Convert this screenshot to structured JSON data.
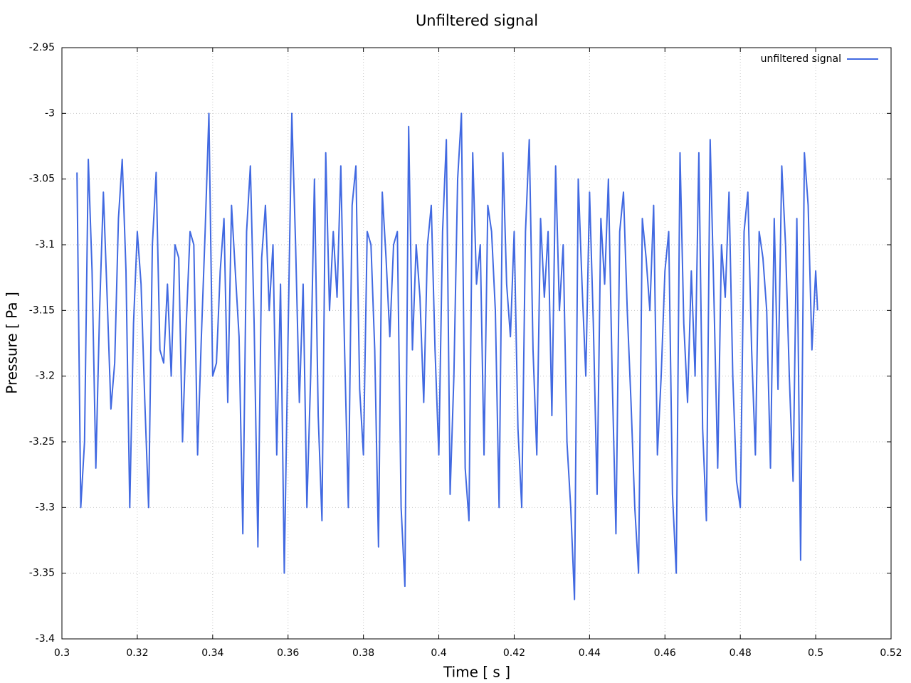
{
  "chart_data": {
    "type": "line",
    "title": "Unfiltered signal",
    "x_label": "Time [ s ]",
    "y_label": "Pressure [ Pa ]",
    "xlim": [
      0.3,
      0.52
    ],
    "xticks": [
      0.3,
      0.32,
      0.34,
      0.36,
      0.38,
      0.4,
      0.42,
      0.44,
      0.46,
      0.48,
      0.5,
      0.52
    ],
    "ylim": [
      -3.4,
      -2.95
    ],
    "yticks": [
      -3.4,
      -3.35,
      -3.3,
      -3.25,
      -3.2,
      -3.15,
      -3.1,
      -3.05,
      -3,
      -2.95
    ],
    "grid": true,
    "legend": "top-right",
    "x": [
      0.304,
      0.305,
      0.306,
      0.307,
      0.308,
      0.309,
      0.31,
      0.311,
      0.312,
      0.313,
      0.314,
      0.315,
      0.316,
      0.317,
      0.318,
      0.319,
      0.32,
      0.321,
      0.322,
      0.323,
      0.324,
      0.325,
      0.326,
      0.327,
      0.328,
      0.329,
      0.33,
      0.331,
      0.332,
      0.333,
      0.334,
      0.335,
      0.336,
      0.337,
      0.338,
      0.339,
      0.34,
      0.341,
      0.342,
      0.343,
      0.344,
      0.345,
      0.346,
      0.347,
      0.348,
      0.349,
      0.35,
      0.351,
      0.352,
      0.353,
      0.354,
      0.355,
      0.356,
      0.357,
      0.358,
      0.359,
      0.36,
      0.361,
      0.362,
      0.363,
      0.364,
      0.365,
      0.366,
      0.367,
      0.368,
      0.369,
      0.37,
      0.371,
      0.372,
      0.373,
      0.374,
      0.375,
      0.376,
      0.377,
      0.378,
      0.379,
      0.38,
      0.381,
      0.382,
      0.383,
      0.384,
      0.385,
      0.386,
      0.387,
      0.388,
      0.389,
      0.39,
      0.391,
      0.392,
      0.393,
      0.394,
      0.395,
      0.396,
      0.397,
      0.398,
      0.399,
      0.4,
      0.401,
      0.402,
      0.403,
      0.404,
      0.405,
      0.406,
      0.407,
      0.408,
      0.409,
      0.41,
      0.411,
      0.412,
      0.413,
      0.414,
      0.415,
      0.416,
      0.417,
      0.418,
      0.419,
      0.42,
      0.421,
      0.422,
      0.423,
      0.424,
      0.425,
      0.426,
      0.427,
      0.428,
      0.429,
      0.43,
      0.431,
      0.432,
      0.433,
      0.434,
      0.435,
      0.436,
      0.437,
      0.438,
      0.439,
      0.44,
      0.441,
      0.442,
      0.443,
      0.444,
      0.445,
      0.446,
      0.447,
      0.448,
      0.449,
      0.45,
      0.451,
      0.452,
      0.453,
      0.454,
      0.455,
      0.456,
      0.457,
      0.458,
      0.459,
      0.46,
      0.461,
      0.462,
      0.463,
      0.464,
      0.465,
      0.466,
      0.467,
      0.468,
      0.469,
      0.47,
      0.471,
      0.472,
      0.473,
      0.474,
      0.475,
      0.476,
      0.477,
      0.478,
      0.479,
      0.48,
      0.481,
      0.482,
      0.483,
      0.484,
      0.485,
      0.486,
      0.487,
      0.488,
      0.489,
      0.49,
      0.491,
      0.492,
      0.493,
      0.494,
      0.495,
      0.496,
      0.497,
      0.498,
      0.499,
      0.5,
      0.5005
    ],
    "series": [
      {
        "name": "unfiltered signal",
        "color": "#4169e1",
        "values": [
          -3.045,
          -3.3,
          -3.25,
          -3.035,
          -3.12,
          -3.27,
          -3.15,
          -3.06,
          -3.14,
          -3.225,
          -3.19,
          -3.08,
          -3.035,
          -3.12,
          -3.3,
          -3.16,
          -3.09,
          -3.13,
          -3.22,
          -3.3,
          -3.1,
          -3.045,
          -3.18,
          -3.19,
          -3.13,
          -3.2,
          -3.1,
          -3.11,
          -3.25,
          -3.16,
          -3.09,
          -3.1,
          -3.26,
          -3.17,
          -3.09,
          -3.0,
          -3.2,
          -3.19,
          -3.12,
          -3.08,
          -3.22,
          -3.07,
          -3.12,
          -3.17,
          -3.32,
          -3.09,
          -3.04,
          -3.16,
          -3.33,
          -3.11,
          -3.07,
          -3.15,
          -3.1,
          -3.26,
          -3.13,
          -3.35,
          -3.17,
          -3.0,
          -3.1,
          -3.22,
          -3.13,
          -3.3,
          -3.2,
          -3.05,
          -3.23,
          -3.31,
          -3.03,
          -3.15,
          -3.09,
          -3.14,
          -3.04,
          -3.18,
          -3.3,
          -3.07,
          -3.04,
          -3.21,
          -3.26,
          -3.09,
          -3.1,
          -3.18,
          -3.33,
          -3.06,
          -3.11,
          -3.17,
          -3.1,
          -3.09,
          -3.3,
          -3.36,
          -3.01,
          -3.18,
          -3.1,
          -3.14,
          -3.22,
          -3.1,
          -3.07,
          -3.18,
          -3.26,
          -3.09,
          -3.02,
          -3.29,
          -3.2,
          -3.05,
          -3.0,
          -3.27,
          -3.31,
          -3.03,
          -3.13,
          -3.1,
          -3.26,
          -3.07,
          -3.09,
          -3.15,
          -3.3,
          -3.03,
          -3.13,
          -3.17,
          -3.09,
          -3.24,
          -3.3,
          -3.09,
          -3.02,
          -3.18,
          -3.26,
          -3.08,
          -3.14,
          -3.09,
          -3.23,
          -3.04,
          -3.15,
          -3.1,
          -3.25,
          -3.3,
          -3.37,
          -3.05,
          -3.13,
          -3.2,
          -3.06,
          -3.16,
          -3.29,
          -3.08,
          -3.13,
          -3.05,
          -3.2,
          -3.32,
          -3.09,
          -3.06,
          -3.15,
          -3.22,
          -3.3,
          -3.35,
          -3.08,
          -3.11,
          -3.15,
          -3.07,
          -3.26,
          -3.2,
          -3.12,
          -3.09,
          -3.29,
          -3.35,
          -3.03,
          -3.16,
          -3.22,
          -3.12,
          -3.2,
          -3.03,
          -3.24,
          -3.31,
          -3.02,
          -3.14,
          -3.27,
          -3.1,
          -3.14,
          -3.06,
          -3.2,
          -3.28,
          -3.3,
          -3.09,
          -3.06,
          -3.18,
          -3.26,
          -3.09,
          -3.11,
          -3.15,
          -3.27,
          -3.08,
          -3.21,
          -3.04,
          -3.1,
          -3.2,
          -3.28,
          -3.08,
          -3.34,
          -3.03,
          -3.07,
          -3.18,
          -3.12,
          -3.15
        ]
      }
    ]
  }
}
